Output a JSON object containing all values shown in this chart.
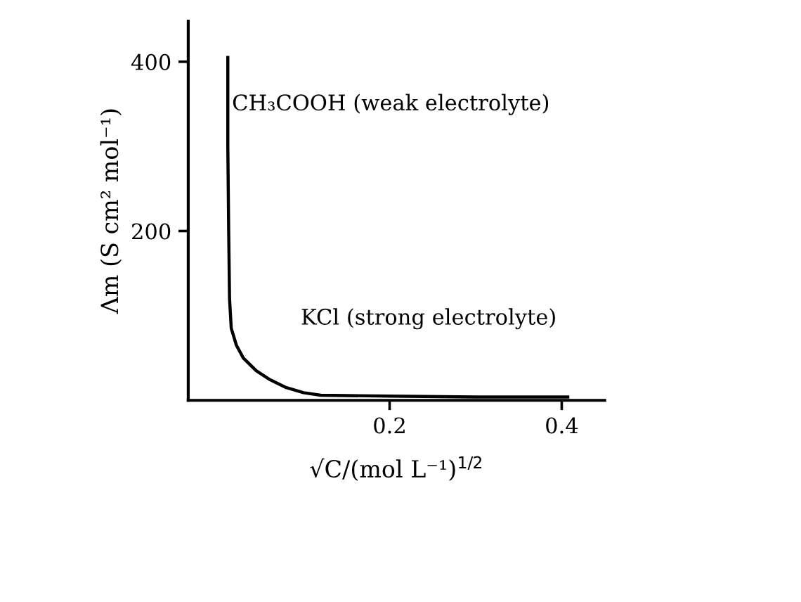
{
  "chart_data": {
    "type": "line",
    "xlabel": "√C/(mol L⁻¹)$^{1/2}$",
    "ylabel": "Λm (S cm² mol⁻¹)",
    "series": [
      {
        "color": "#000000",
        "x": [
          0.012,
          0.012,
          0.013,
          0.014,
          0.016,
          0.022,
          0.03,
          0.045,
          0.06,
          0.08,
          0.1,
          0.12,
          0.2,
          0.3,
          0.407
        ],
        "values": [
          405,
          300,
          200,
          120,
          85,
          65,
          50,
          35,
          25,
          15,
          9,
          6,
          5,
          4,
          4
        ]
      }
    ],
    "xlim": [
      -0.034,
      0.45
    ],
    "ylim": [
      0,
      448
    ],
    "xticks": [
      0.2,
      0.4
    ],
    "yticks": [
      200,
      400
    ],
    "annotations": [
      "CH₃COOH (weak electrolyte)",
      "KCl (strong electrolyte)"
    ],
    "grid": false,
    "legend": false,
    "marker": "none",
    "line_style": "solid"
  }
}
